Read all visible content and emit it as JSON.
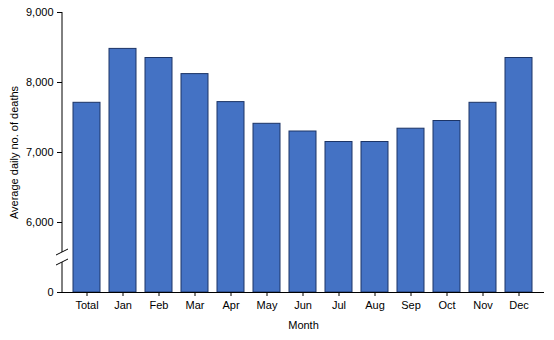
{
  "chart_data": {
    "type": "bar",
    "xlabel": "Month",
    "ylabel": "Average daily no. of deaths",
    "categories": [
      "Total",
      "Jan",
      "Feb",
      "Mar",
      "Apr",
      "May",
      "Jun",
      "Jul",
      "Aug",
      "Sep",
      "Oct",
      "Nov",
      "Dec"
    ],
    "values": [
      7710,
      8480,
      8350,
      8120,
      7720,
      7410,
      7300,
      7150,
      7150,
      7340,
      7450,
      7710,
      8350
    ],
    "color": "#4472c4",
    "ylim": [
      0,
      9000
    ],
    "yticks": [
      0,
      {
        "value": 6000,
        "label": "6,000"
      },
      {
        "value": 7000,
        "label": "7,000"
      },
      {
        "value": 8000,
        "label": "8,000"
      },
      {
        "value": 9000,
        "label": "9,000"
      }
    ],
    "grid": false
  }
}
